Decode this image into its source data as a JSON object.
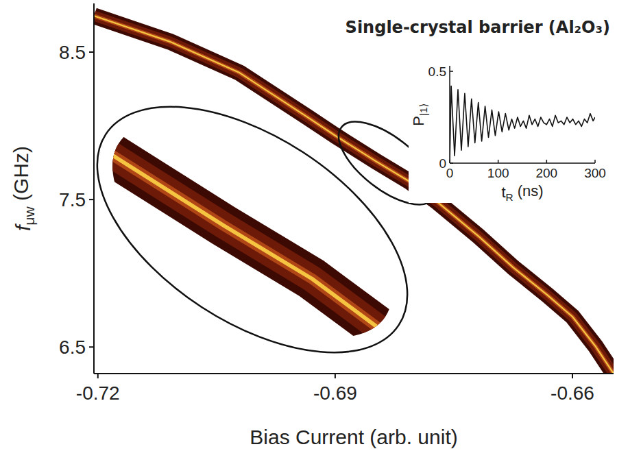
{
  "chart_data": [
    {
      "type": "line",
      "title": "Single-crystal barrier (Al₂O₃)",
      "x_label": "Bias Current (arb. unit)",
      "y_label": "fμw (GHz)",
      "xlim": [
        -0.7205,
        -0.6548
      ],
      "ylim": [
        6.32,
        8.83
      ],
      "xticks": [
        -0.72,
        -0.69,
        -0.66
      ],
      "yticks": [
        6.5,
        7.5,
        8.5
      ],
      "x": [
        -0.7205,
        -0.7108,
        -0.7021,
        -0.6935,
        -0.69,
        -0.6848,
        -0.6805,
        -0.677,
        -0.6718,
        -0.6675,
        -0.6632,
        -0.66,
        -0.6571,
        -0.6548
      ],
      "values": [
        8.746,
        8.569,
        8.36,
        8.059,
        7.934,
        7.758,
        7.619,
        7.48,
        7.248,
        7.04,
        6.854,
        6.706,
        6.506,
        6.32
      ],
      "color": "#f5c542"
    },
    {
      "type": "line",
      "x_label": "tR (ns)",
      "y_label": "P|1⟩",
      "xlim": [
        0,
        300
      ],
      "ylim": [
        0,
        0.53
      ],
      "xticks": [
        0,
        100,
        200,
        300
      ],
      "yticks": [
        0,
        0.5
      ],
      "x": [
        0,
        3,
        10,
        17,
        24,
        31,
        38,
        45,
        52,
        59,
        66,
        73,
        80,
        87,
        94,
        101,
        108,
        115,
        122,
        128,
        134,
        140,
        146,
        152,
        158,
        164,
        170,
        176,
        182,
        188,
        194,
        200,
        206,
        212,
        218,
        224,
        230,
        236,
        242,
        248,
        254,
        260,
        266,
        272,
        278,
        284,
        290,
        296,
        300
      ],
      "values": [
        0,
        0.42,
        0.04,
        0.4,
        0.07,
        0.38,
        0.09,
        0.35,
        0.11,
        0.33,
        0.12,
        0.31,
        0.14,
        0.29,
        0.15,
        0.28,
        0.17,
        0.27,
        0.18,
        0.24,
        0.19,
        0.25,
        0.2,
        0.23,
        0.19,
        0.26,
        0.21,
        0.24,
        0.2,
        0.25,
        0.22,
        0.21,
        0.24,
        0.2,
        0.26,
        0.22,
        0.23,
        0.21,
        0.25,
        0.22,
        0.24,
        0.21,
        0.23,
        0.2,
        0.24,
        0.22,
        0.27,
        0.23,
        0.25
      ],
      "color": "#111111"
    }
  ]
}
